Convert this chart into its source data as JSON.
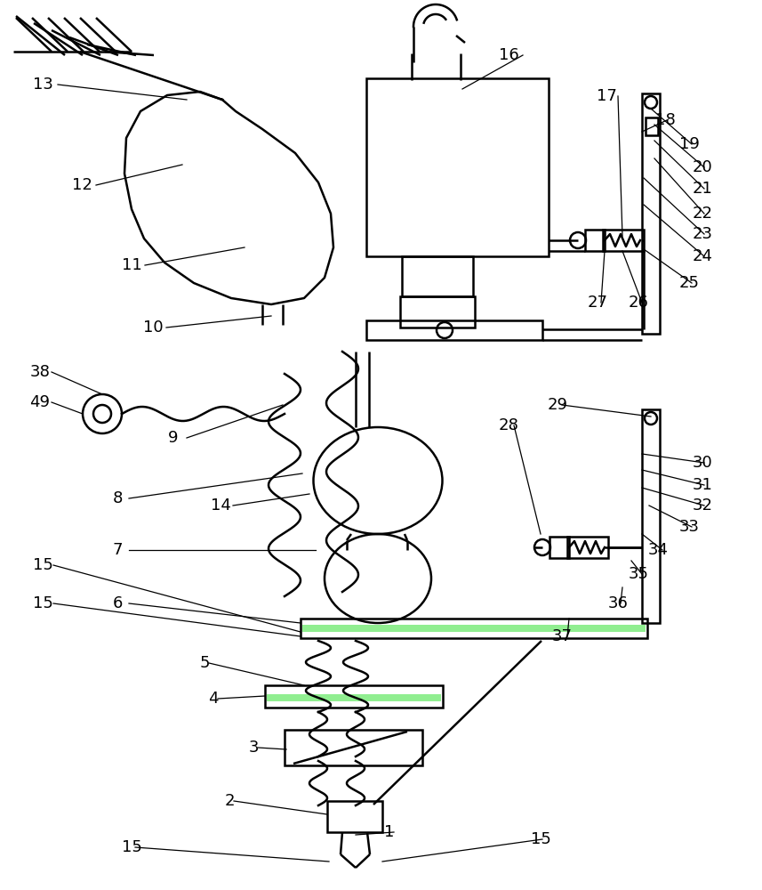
{
  "bg_color": "#ffffff",
  "lc": "#000000",
  "lw": 1.8,
  "lw_thin": 0.9,
  "fs": 13,
  "fs_small": 11
}
